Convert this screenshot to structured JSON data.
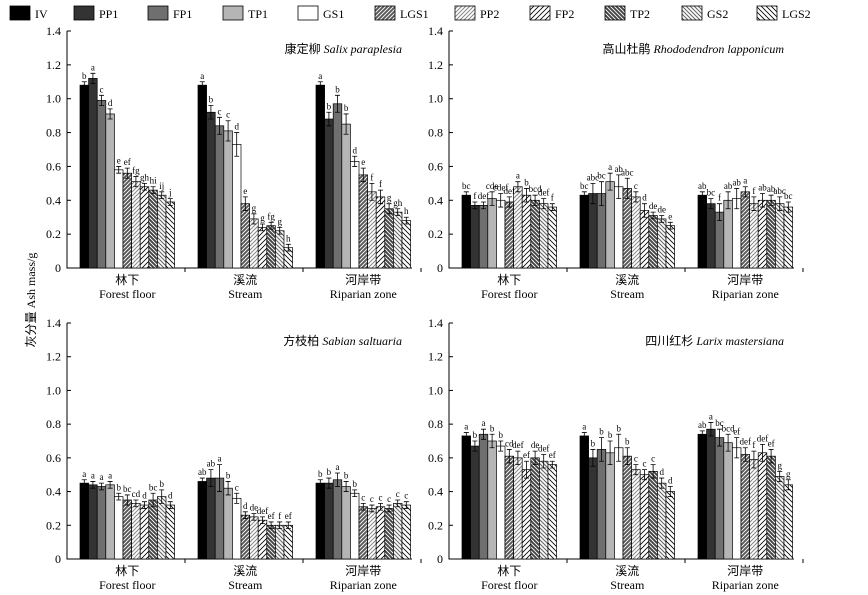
{
  "y_axis_label": "灰分量 Ash mass/g",
  "legend": [
    {
      "name": "IV",
      "pattern": "solid-black"
    },
    {
      "name": "PP1",
      "pattern": "solid-dark"
    },
    {
      "name": "FP1",
      "pattern": "solid-mid"
    },
    {
      "name": "TP1",
      "pattern": "solid-light"
    },
    {
      "name": "GS1",
      "pattern": "white"
    },
    {
      "name": "LGS1",
      "pattern": "hatch-fwd-dark"
    },
    {
      "name": "PP2",
      "pattern": "hatch-fwd-light"
    },
    {
      "name": "FP2",
      "pattern": "hatch-fwd-white"
    },
    {
      "name": "TP2",
      "pattern": "hatch-back-dark"
    },
    {
      "name": "GS2",
      "pattern": "hatch-back-mid"
    },
    {
      "name": "LGS2",
      "pattern": "hatch-back-white"
    }
  ],
  "chart_data": [
    {
      "type": "bar",
      "title_cn": "康定柳",
      "title_latin": "Salix paraplesia",
      "ylim": [
        0,
        1.4
      ],
      "yticks": [
        "0",
        "0.2",
        "0.4",
        "0.6",
        "0.8",
        "1.0",
        "1.2",
        "1.4"
      ],
      "groups": [
        {
          "label_cn": "林下",
          "label_en": "Forest floor",
          "values": [
            1.08,
            1.12,
            0.99,
            0.91,
            0.58,
            0.56,
            0.51,
            0.48,
            0.46,
            0.43,
            0.39
          ],
          "errors": [
            0.02,
            0.03,
            0.03,
            0.03,
            0.02,
            0.03,
            0.03,
            0.02,
            0.02,
            0.02,
            0.02
          ],
          "letters": [
            "b",
            "a",
            "c",
            "d",
            "e",
            "ef",
            "fg",
            "gh",
            "hi",
            "ij",
            "j"
          ]
        },
        {
          "label_cn": "溪流",
          "label_en": "Stream",
          "values": [
            1.08,
            0.92,
            0.84,
            0.81,
            0.73,
            0.38,
            0.29,
            0.24,
            0.25,
            0.22,
            0.12
          ],
          "errors": [
            0.02,
            0.04,
            0.05,
            0.06,
            0.07,
            0.04,
            0.03,
            0.02,
            0.02,
            0.02,
            0.02
          ],
          "letters": [
            "a",
            "b",
            "c",
            "c",
            "d",
            "e",
            "g",
            "g",
            "fg",
            "g",
            "h"
          ]
        },
        {
          "label_cn": "河岸带",
          "label_en": "Riparian zone",
          "values": [
            1.08,
            0.88,
            0.97,
            0.85,
            0.63,
            0.55,
            0.45,
            0.42,
            0.35,
            0.33,
            0.28
          ],
          "errors": [
            0.02,
            0.04,
            0.05,
            0.06,
            0.03,
            0.04,
            0.05,
            0.04,
            0.03,
            0.02,
            0.02
          ],
          "letters": [
            "a",
            "b",
            "b",
            "b",
            "d",
            "e",
            "f",
            "f",
            "g",
            "gh",
            "h"
          ]
        }
      ]
    },
    {
      "type": "bar",
      "title_cn": "高山杜鹃",
      "title_latin": "Rhododendron lapponicum",
      "ylim": [
        0,
        1.4
      ],
      "yticks": [
        "0",
        "0.2",
        "0.4",
        "0.6",
        "0.8",
        "1.0",
        "1.2",
        "1.4"
      ],
      "groups": [
        {
          "label_cn": "林下",
          "label_en": "Forest floor",
          "values": [
            0.43,
            0.37,
            0.37,
            0.41,
            0.4,
            0.39,
            0.48,
            0.43,
            0.4,
            0.38,
            0.36
          ],
          "errors": [
            0.02,
            0.02,
            0.02,
            0.04,
            0.04,
            0.03,
            0.03,
            0.04,
            0.03,
            0.03,
            0.02
          ],
          "letters": [
            "bc",
            "f",
            "def",
            "cde",
            "cdef",
            "def",
            "a",
            "b",
            "bcd",
            "def",
            "f"
          ]
        },
        {
          "label_cn": "溪流",
          "label_en": "Stream",
          "values": [
            0.43,
            0.44,
            0.44,
            0.51,
            0.48,
            0.47,
            0.42,
            0.34,
            0.31,
            0.29,
            0.25
          ],
          "errors": [
            0.02,
            0.06,
            0.07,
            0.05,
            0.07,
            0.06,
            0.03,
            0.04,
            0.02,
            0.02,
            0.02
          ],
          "letters": [
            "bc",
            "abc",
            "bc",
            "a",
            "ab",
            "abc",
            "c",
            "d",
            "de",
            "de",
            "e"
          ]
        },
        {
          "label_cn": "河岸带",
          "label_en": "Riparian zone",
          "values": [
            0.43,
            0.38,
            0.33,
            0.4,
            0.41,
            0.45,
            0.38,
            0.4,
            0.4,
            0.38,
            0.36
          ],
          "errors": [
            0.02,
            0.03,
            0.05,
            0.05,
            0.06,
            0.03,
            0.04,
            0.04,
            0.03,
            0.04,
            0.03
          ],
          "letters": [
            "ab",
            "bc",
            "f",
            "ab",
            "ab",
            "a",
            "f",
            "ab",
            "ab",
            "abc",
            "bc"
          ]
        }
      ]
    },
    {
      "type": "bar",
      "title_cn": "方枝柏",
      "title_latin": "Sabian saltuaria",
      "ylim": [
        0,
        1.4
      ],
      "yticks": [
        "0",
        "0.2",
        "0.4",
        "0.6",
        "0.8",
        "1.0",
        "1.2",
        "1.4"
      ],
      "groups": [
        {
          "label_cn": "林下",
          "label_en": "Forest floor",
          "values": [
            0.45,
            0.44,
            0.43,
            0.44,
            0.37,
            0.35,
            0.33,
            0.32,
            0.35,
            0.37,
            0.32
          ],
          "errors": [
            0.02,
            0.02,
            0.02,
            0.02,
            0.02,
            0.03,
            0.02,
            0.02,
            0.04,
            0.04,
            0.02
          ],
          "letters": [
            "a",
            "a",
            "a",
            "a",
            "b",
            "bc",
            "cd",
            "d",
            "bc",
            "b",
            "d"
          ]
        },
        {
          "label_cn": "溪流",
          "label_en": "Stream",
          "values": [
            0.46,
            0.48,
            0.48,
            0.42,
            0.36,
            0.26,
            0.25,
            0.23,
            0.2,
            0.2,
            0.2
          ],
          "errors": [
            0.02,
            0.05,
            0.08,
            0.04,
            0.03,
            0.02,
            0.02,
            0.02,
            0.02,
            0.02,
            0.02
          ],
          "letters": [
            "ab",
            "ab",
            "a",
            "b",
            "c",
            "d",
            "de",
            "def",
            "ef",
            "f",
            "ef"
          ]
        },
        {
          "label_cn": "河岸带",
          "label_en": "Riparian zone",
          "values": [
            0.45,
            0.45,
            0.47,
            0.43,
            0.39,
            0.31,
            0.3,
            0.31,
            0.3,
            0.33,
            0.32
          ],
          "errors": [
            0.02,
            0.03,
            0.04,
            0.03,
            0.02,
            0.02,
            0.02,
            0.02,
            0.02,
            0.02,
            0.02
          ],
          "letters": [
            "b",
            "b",
            "a",
            "b",
            "b",
            "c",
            "c",
            "c",
            "c",
            "c",
            "c"
          ]
        }
      ]
    },
    {
      "type": "bar",
      "title_cn": "四川红杉",
      "title_latin": "Larix mastersiana",
      "ylim": [
        0,
        1.4
      ],
      "yticks": [
        "0",
        "0.2",
        "0.4",
        "0.6",
        "0.8",
        "1.0",
        "1.2",
        "1.4"
      ],
      "groups": [
        {
          "label_cn": "林下",
          "label_en": "Forest floor",
          "values": [
            0.73,
            0.67,
            0.74,
            0.7,
            0.67,
            0.61,
            0.6,
            0.53,
            0.6,
            0.58,
            0.56
          ],
          "errors": [
            0.02,
            0.03,
            0.03,
            0.04,
            0.03,
            0.04,
            0.04,
            0.05,
            0.04,
            0.04,
            0.02
          ],
          "letters": [
            "a",
            "b",
            "a",
            "b",
            "b",
            "cd",
            "def",
            "ef",
            "de",
            "def",
            "ef"
          ]
        },
        {
          "label_cn": "溪流",
          "label_en": "Stream",
          "values": [
            0.73,
            0.6,
            0.65,
            0.63,
            0.66,
            0.61,
            0.53,
            0.5,
            0.52,
            0.45,
            0.4
          ],
          "errors": [
            0.02,
            0.05,
            0.07,
            0.07,
            0.08,
            0.05,
            0.03,
            0.03,
            0.04,
            0.03,
            0.03
          ],
          "letters": [
            "a",
            "b",
            "b",
            "b",
            "b",
            "b",
            "c",
            "c",
            "c",
            "d",
            "d"
          ]
        },
        {
          "label_cn": "河岸带",
          "label_en": "Riparian zone",
          "values": [
            0.74,
            0.77,
            0.72,
            0.69,
            0.66,
            0.62,
            0.59,
            0.63,
            0.61,
            0.49,
            0.44
          ],
          "errors": [
            0.02,
            0.04,
            0.05,
            0.05,
            0.06,
            0.04,
            0.05,
            0.05,
            0.04,
            0.03,
            0.03
          ],
          "letters": [
            "ab",
            "a",
            "bc",
            "bcd",
            "ef",
            "def",
            "f",
            "def",
            "ef",
            "g",
            "g"
          ]
        }
      ]
    }
  ]
}
